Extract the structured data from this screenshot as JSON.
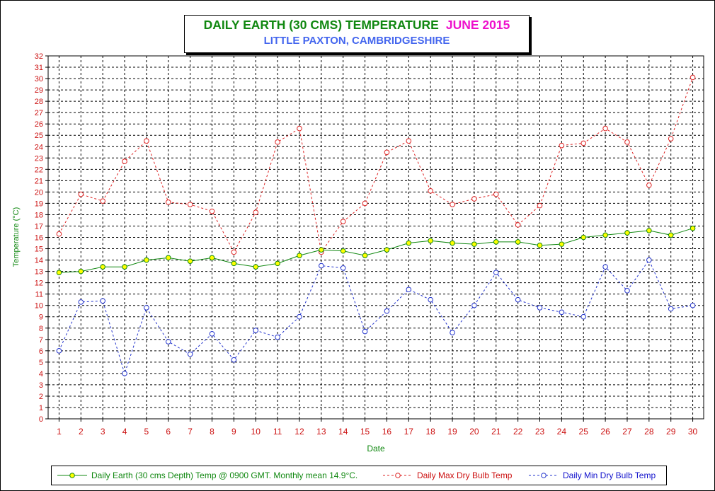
{
  "chart_data": {
    "type": "line",
    "title": "DAILY EARTH (30 CMS) TEMPERATURE",
    "title_month": "JUNE 2015",
    "subtitle": "LITTLE PAXTON, CAMBRIDGESHIRE",
    "xlabel": "Date",
    "ylabel": "Temperature (°C)",
    "x": [
      1,
      2,
      3,
      4,
      5,
      6,
      7,
      8,
      9,
      10,
      11,
      12,
      13,
      14,
      15,
      16,
      17,
      18,
      19,
      20,
      21,
      22,
      23,
      24,
      25,
      26,
      27,
      28,
      29,
      30
    ],
    "ylim": [
      0,
      32
    ],
    "y_ticks": [
      0,
      1,
      2,
      3,
      4,
      5,
      6,
      7,
      8,
      9,
      10,
      11,
      12,
      13,
      14,
      15,
      16,
      17,
      18,
      19,
      20,
      21,
      22,
      23,
      24,
      25,
      26,
      27,
      28,
      29,
      30,
      31,
      32
    ],
    "grid": true,
    "legend_position": "bottom",
    "series": [
      {
        "name": "Daily Earth (30 cms Depth) Temp @ 0900 GMT. Monthly mean 14.9°C.",
        "color": "#118811",
        "marker_fill": "#ffff00",
        "line_style": "solid",
        "values": [
          12.9,
          13.0,
          13.4,
          13.4,
          14.0,
          14.2,
          13.9,
          14.2,
          13.7,
          13.4,
          13.7,
          14.4,
          14.9,
          14.8,
          14.4,
          14.9,
          15.5,
          15.7,
          15.5,
          15.4,
          15.6,
          15.6,
          15.3,
          15.4,
          16.0,
          16.2,
          16.4,
          16.6,
          16.2,
          16.8
        ]
      },
      {
        "name": "Daily Max Dry Bulb Temp",
        "color": "#dd2222",
        "marker_fill": "#ffffff",
        "line_style": "dashed",
        "values": [
          16.3,
          19.8,
          19.2,
          22.7,
          24.5,
          19.1,
          18.9,
          18.3,
          14.7,
          18.2,
          24.4,
          25.6,
          14.7,
          17.4,
          19.0,
          23.5,
          24.5,
          20.1,
          18.9,
          19.4,
          19.8,
          17.1,
          18.8,
          24.1,
          24.3,
          25.6,
          24.4,
          20.6,
          24.7,
          30.1
        ]
      },
      {
        "name": "Daily Min Dry Bulb Temp",
        "color": "#2233cc",
        "marker_fill": "#ffffff",
        "line_style": "dashed",
        "values": [
          6.0,
          10.3,
          10.4,
          4.0,
          9.8,
          6.8,
          5.7,
          7.5,
          5.2,
          7.8,
          7.2,
          9.0,
          13.5,
          13.3,
          7.7,
          9.5,
          11.4,
          10.5,
          7.6,
          10.0,
          12.9,
          10.5,
          9.8,
          9.4,
          9.0,
          13.4,
          11.3,
          14.0,
          9.7,
          10.0
        ]
      }
    ]
  }
}
